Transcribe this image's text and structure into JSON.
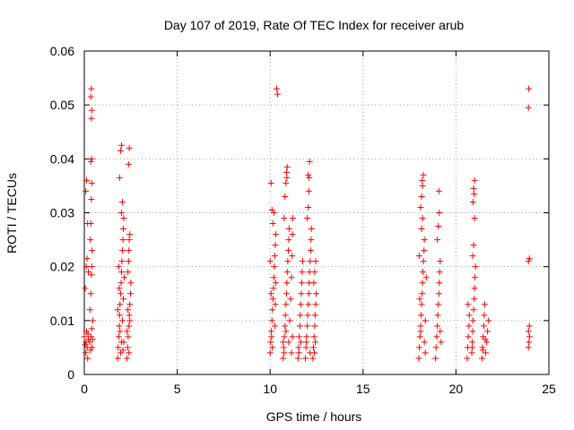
{
  "chart_data": {
    "type": "scatter",
    "title": "Day 107 of 2019, Rate Of TEC Index for receiver arub",
    "xlabel": "GPS time / hours",
    "ylabel": "ROTI / TECUs",
    "xlim": [
      0,
      25
    ],
    "ylim": [
      0,
      0.06
    ],
    "xticks": [
      0,
      5,
      10,
      15,
      20,
      25
    ],
    "xtick_labels": [
      "0",
      "5",
      "10",
      "15",
      "20",
      "25"
    ],
    "yticks": [
      0,
      0.01,
      0.02,
      0.03,
      0.04,
      0.05,
      0.06
    ],
    "ytick_labels": [
      "0",
      "0.01",
      "0.02",
      "0.03",
      "0.04",
      "0.05",
      "0.06"
    ],
    "grid": true,
    "marker": "plus",
    "color": "#ff0000",
    "series": [
      {
        "points": [
          [
            0.0,
            0.007
          ],
          [
            0.05,
            0.0055
          ],
          [
            0.08,
            0.004
          ],
          [
            0.1,
            0.006
          ],
          [
            0.12,
            0.008
          ],
          [
            0.15,
            0.005
          ],
          [
            0.18,
            0.003
          ],
          [
            0.2,
            0.0075
          ],
          [
            0.22,
            0.0065
          ],
          [
            0.05,
            0.016
          ],
          [
            0.1,
            0.02
          ],
          [
            0.15,
            0.0215
          ],
          [
            0.08,
            0.034
          ],
          [
            0.12,
            0.036
          ],
          [
            0.18,
            0.028
          ],
          [
            0.22,
            0.019
          ],
          [
            0.3,
            0.006
          ],
          [
            0.33,
            0.0045
          ],
          [
            0.36,
            0.007
          ],
          [
            0.4,
            0.0085
          ],
          [
            0.42,
            0.005
          ],
          [
            0.45,
            0.0065
          ],
          [
            0.3,
            0.012
          ],
          [
            0.35,
            0.015
          ],
          [
            0.38,
            0.0185
          ],
          [
            0.4,
            0.02
          ],
          [
            0.42,
            0.023
          ],
          [
            0.35,
            0.028
          ],
          [
            0.38,
            0.0325
          ],
          [
            0.4,
            0.0355
          ],
          [
            0.35,
            0.0395
          ],
          [
            0.4,
            0.04
          ],
          [
            0.38,
            0.0475
          ],
          [
            0.4,
            0.049
          ],
          [
            0.35,
            0.0515
          ],
          [
            0.38,
            0.053
          ],
          [
            0.45,
            0.01
          ],
          [
            0.32,
            0.025
          ],
          [
            1.8,
            0.003
          ],
          [
            1.82,
            0.005
          ],
          [
            1.85,
            0.007
          ],
          [
            1.88,
            0.009
          ],
          [
            1.9,
            0.011
          ],
          [
            1.92,
            0.013
          ],
          [
            1.95,
            0.015
          ],
          [
            1.98,
            0.017
          ],
          [
            2.0,
            0.019
          ],
          [
            2.02,
            0.021
          ],
          [
            2.05,
            0.023
          ],
          [
            2.08,
            0.025
          ],
          [
            2.1,
            0.027
          ],
          [
            2.12,
            0.029
          ],
          [
            2.0,
            0.03
          ],
          [
            2.05,
            0.032
          ],
          [
            1.9,
            0.0365
          ],
          [
            1.95,
            0.0415
          ],
          [
            2.0,
            0.0425
          ],
          [
            1.85,
            0.02
          ],
          [
            1.88,
            0.016
          ],
          [
            1.92,
            0.008
          ],
          [
            1.95,
            0.004
          ],
          [
            2.0,
            0.006
          ],
          [
            2.05,
            0.01
          ],
          [
            2.1,
            0.014
          ],
          [
            2.15,
            0.018
          ],
          [
            1.8,
            0.012
          ],
          [
            2.12,
            0.006
          ],
          [
            2.08,
            0.0045
          ],
          [
            2.3,
            0.003
          ],
          [
            2.33,
            0.005
          ],
          [
            2.36,
            0.007
          ],
          [
            2.4,
            0.009
          ],
          [
            2.42,
            0.011
          ],
          [
            2.45,
            0.013
          ],
          [
            2.48,
            0.015
          ],
          [
            2.5,
            0.017
          ],
          [
            2.35,
            0.019
          ],
          [
            2.38,
            0.021
          ],
          [
            2.4,
            0.023
          ],
          [
            2.42,
            0.025
          ],
          [
            2.45,
            0.026
          ],
          [
            2.38,
            0.039
          ],
          [
            2.42,
            0.042
          ],
          [
            2.3,
            0.008
          ],
          [
            2.35,
            0.012
          ],
          [
            2.4,
            0.004
          ],
          [
            2.45,
            0.01
          ],
          [
            10.0,
            0.004
          ],
          [
            10.03,
            0.006
          ],
          [
            10.06,
            0.008
          ],
          [
            10.1,
            0.01
          ],
          [
            10.12,
            0.012
          ],
          [
            10.15,
            0.014
          ],
          [
            10.18,
            0.016
          ],
          [
            10.2,
            0.018
          ],
          [
            10.22,
            0.02
          ],
          [
            10.25,
            0.022
          ],
          [
            10.28,
            0.024
          ],
          [
            10.3,
            0.026
          ],
          [
            10.15,
            0.028
          ],
          [
            10.2,
            0.03
          ],
          [
            10.1,
            0.0305
          ],
          [
            10.05,
            0.0355
          ],
          [
            10.08,
            0.007
          ],
          [
            10.12,
            0.005
          ],
          [
            10.25,
            0.009
          ],
          [
            10.28,
            0.013
          ],
          [
            10.3,
            0.017
          ],
          [
            10.0,
            0.021
          ],
          [
            10.05,
            0.015
          ],
          [
            10.35,
            0.053
          ],
          [
            10.4,
            0.052
          ],
          [
            10.7,
            0.003
          ],
          [
            10.73,
            0.005
          ],
          [
            10.76,
            0.007
          ],
          [
            10.8,
            0.009
          ],
          [
            10.82,
            0.011
          ],
          [
            10.85,
            0.013
          ],
          [
            10.88,
            0.015
          ],
          [
            10.9,
            0.017
          ],
          [
            10.92,
            0.019
          ],
          [
            10.95,
            0.021
          ],
          [
            10.98,
            0.023
          ],
          [
            11.0,
            0.025
          ],
          [
            11.02,
            0.027
          ],
          [
            10.75,
            0.029
          ],
          [
            10.8,
            0.033
          ],
          [
            10.85,
            0.0355
          ],
          [
            10.9,
            0.0365
          ],
          [
            10.88,
            0.0375
          ],
          [
            10.92,
            0.0385
          ],
          [
            10.7,
            0.006
          ],
          [
            10.75,
            0.004
          ],
          [
            10.85,
            0.008
          ],
          [
            11.0,
            0.006
          ],
          [
            11.05,
            0.01
          ],
          [
            11.1,
            0.014
          ],
          [
            11.15,
            0.018
          ],
          [
            11.18,
            0.022
          ],
          [
            11.2,
            0.026
          ],
          [
            11.22,
            0.029
          ],
          [
            11.15,
            0.004
          ],
          [
            11.2,
            0.007
          ],
          [
            11.5,
            0.003
          ],
          [
            11.53,
            0.005
          ],
          [
            11.56,
            0.007
          ],
          [
            11.6,
            0.009
          ],
          [
            11.62,
            0.011
          ],
          [
            11.65,
            0.013
          ],
          [
            11.68,
            0.015
          ],
          [
            11.7,
            0.017
          ],
          [
            11.72,
            0.019
          ],
          [
            11.75,
            0.021
          ],
          [
            11.55,
            0.004
          ],
          [
            11.65,
            0.006
          ],
          [
            11.9,
            0.003
          ],
          [
            11.93,
            0.005
          ],
          [
            11.96,
            0.007
          ],
          [
            12.0,
            0.009
          ],
          [
            12.02,
            0.011
          ],
          [
            12.05,
            0.013
          ],
          [
            12.08,
            0.015
          ],
          [
            12.1,
            0.017
          ],
          [
            12.12,
            0.019
          ],
          [
            12.15,
            0.021
          ],
          [
            12.18,
            0.023
          ],
          [
            12.2,
            0.025
          ],
          [
            12.22,
            0.027
          ],
          [
            12.0,
            0.029
          ],
          [
            12.05,
            0.031
          ],
          [
            12.08,
            0.034
          ],
          [
            12.1,
            0.0365
          ],
          [
            12.12,
            0.0395
          ],
          [
            12.05,
            0.037
          ],
          [
            12.15,
            0.004
          ],
          [
            11.95,
            0.006
          ],
          [
            12.3,
            0.003
          ],
          [
            12.33,
            0.005
          ],
          [
            12.36,
            0.007
          ],
          [
            12.4,
            0.009
          ],
          [
            12.42,
            0.011
          ],
          [
            12.45,
            0.013
          ],
          [
            12.48,
            0.015
          ],
          [
            12.35,
            0.017
          ],
          [
            12.4,
            0.019
          ],
          [
            12.45,
            0.021
          ],
          [
            12.38,
            0.004
          ],
          [
            12.43,
            0.006
          ],
          [
            18.0,
            0.003
          ],
          [
            18.03,
            0.005
          ],
          [
            18.06,
            0.007
          ],
          [
            18.1,
            0.009
          ],
          [
            18.12,
            0.011
          ],
          [
            18.15,
            0.013
          ],
          [
            18.18,
            0.015
          ],
          [
            18.2,
            0.017
          ],
          [
            18.22,
            0.019
          ],
          [
            18.25,
            0.021
          ],
          [
            18.28,
            0.023
          ],
          [
            18.3,
            0.025
          ],
          [
            18.15,
            0.027
          ],
          [
            18.2,
            0.029
          ],
          [
            18.1,
            0.031
          ],
          [
            18.15,
            0.033
          ],
          [
            18.2,
            0.035
          ],
          [
            18.25,
            0.037
          ],
          [
            18.18,
            0.036
          ],
          [
            18.1,
            0.008
          ],
          [
            18.3,
            0.006
          ],
          [
            18.35,
            0.01
          ],
          [
            18.05,
            0.014
          ],
          [
            18.4,
            0.018
          ],
          [
            18.02,
            0.022
          ],
          [
            18.35,
            0.004
          ],
          [
            18.9,
            0.003
          ],
          [
            18.93,
            0.005
          ],
          [
            18.96,
            0.007
          ],
          [
            19.0,
            0.009
          ],
          [
            19.02,
            0.011
          ],
          [
            19.05,
            0.013
          ],
          [
            19.08,
            0.015
          ],
          [
            19.1,
            0.017
          ],
          [
            19.12,
            0.019
          ],
          [
            19.15,
            0.021
          ],
          [
            19.0,
            0.025
          ],
          [
            19.05,
            0.0275
          ],
          [
            19.1,
            0.03
          ],
          [
            19.08,
            0.034
          ],
          [
            19.15,
            0.008
          ],
          [
            19.2,
            0.006
          ],
          [
            20.6,
            0.003
          ],
          [
            20.63,
            0.005
          ],
          [
            20.66,
            0.007
          ],
          [
            20.7,
            0.009
          ],
          [
            20.72,
            0.011
          ],
          [
            20.65,
            0.013
          ],
          [
            20.85,
            0.004
          ],
          [
            20.88,
            0.006
          ],
          [
            20.9,
            0.008
          ],
          [
            20.92,
            0.01
          ],
          [
            20.95,
            0.012
          ],
          [
            20.98,
            0.014
          ],
          [
            21.0,
            0.016
          ],
          [
            21.02,
            0.018
          ],
          [
            21.05,
            0.02
          ],
          [
            20.9,
            0.022
          ],
          [
            20.95,
            0.024
          ],
          [
            21.0,
            0.029
          ],
          [
            20.92,
            0.032
          ],
          [
            20.98,
            0.0335
          ],
          [
            20.95,
            0.0345
          ],
          [
            21.0,
            0.036
          ],
          [
            20.88,
            0.005
          ],
          [
            21.4,
            0.003
          ],
          [
            21.43,
            0.005
          ],
          [
            21.46,
            0.007
          ],
          [
            21.5,
            0.009
          ],
          [
            21.52,
            0.011
          ],
          [
            21.55,
            0.013
          ],
          [
            21.6,
            0.004
          ],
          [
            21.65,
            0.006
          ],
          [
            21.7,
            0.008
          ],
          [
            21.75,
            0.01
          ],
          [
            21.45,
            0.0045
          ],
          [
            21.58,
            0.0065
          ],
          [
            23.9,
            0.005
          ],
          [
            23.93,
            0.006
          ],
          [
            23.96,
            0.007
          ],
          [
            23.9,
            0.008
          ],
          [
            23.95,
            0.009
          ],
          [
            23.9,
            0.021
          ],
          [
            23.95,
            0.0215
          ],
          [
            23.9,
            0.0495
          ],
          [
            23.92,
            0.053
          ]
        ]
      }
    ]
  }
}
